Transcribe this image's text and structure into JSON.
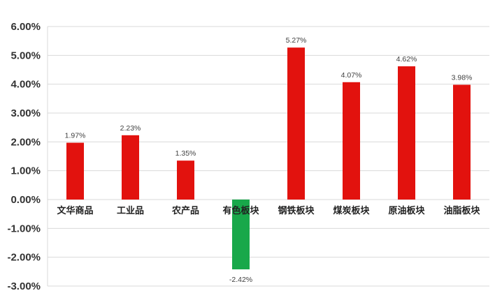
{
  "chart_data": {
    "type": "bar",
    "title": "",
    "xlabel": "",
    "ylabel": "",
    "categories": [
      "文华商品",
      "工业品",
      "农产品",
      "有色板块",
      "钢铁板块",
      "煤炭板块",
      "原油板块",
      "油脂板块"
    ],
    "values": [
      1.97,
      2.23,
      1.35,
      -2.42,
      5.27,
      4.07,
      4.62,
      3.98
    ],
    "data_labels": [
      "1.97%",
      "2.23%",
      "1.35%",
      "-2.42%",
      "5.27%",
      "4.07%",
      "4.62%",
      "3.98%"
    ],
    "ylim": [
      -3,
      6
    ],
    "yticks": [
      6,
      5,
      4,
      3,
      2,
      1,
      0,
      -1,
      -2,
      -3
    ],
    "ytick_labels": [
      "6.00%",
      "5.00%",
      "4.00%",
      "3.00%",
      "2.00%",
      "1.00%",
      "0.00%",
      "-1.00%",
      "-2.00%",
      "-3.00%"
    ],
    "grid": true,
    "legend": "none",
    "colors": {
      "positive": "#e2120e",
      "negative": "#18a84a",
      "grid": "#d9d9d9"
    }
  }
}
